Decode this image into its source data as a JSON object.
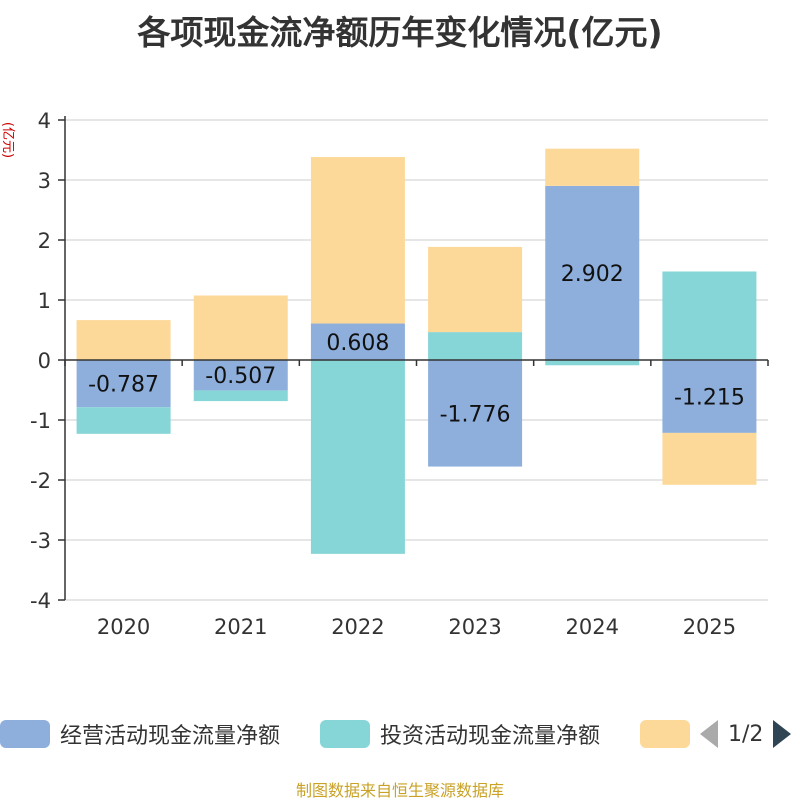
{
  "chart_data": {
    "type": "bar",
    "stacked": true,
    "title": "各项现金流净额历年变化情况(亿元)",
    "ylabel": "(亿元)",
    "xlabel": "",
    "ylim": [
      -4,
      4
    ],
    "yticks": [
      4,
      3,
      2,
      1,
      0,
      -1,
      -2,
      -3,
      -4
    ],
    "grid": true,
    "categories": [
      "2020",
      "2021",
      "2022",
      "2023",
      "2024",
      "2025"
    ],
    "series": [
      {
        "name": "经营活动现金流量净额",
        "color": "#8eafdc",
        "values": [
          -0.787,
          -0.507,
          0.608,
          -1.776,
          2.902,
          -1.215
        ],
        "labels": [
          "-0.787",
          "-0.507",
          "0.608",
          "-1.776",
          "2.902",
          "-1.215"
        ]
      },
      {
        "name": "投资活动现金流量净额",
        "color": "#86d5d7",
        "values": [
          -0.443,
          -0.178,
          -3.231,
          0.465,
          -0.088,
          1.475
        ]
      },
      {
        "name": "",
        "color": "#fdd999",
        "values": [
          0.665,
          1.075,
          2.775,
          1.42,
          0.62,
          -0.865
        ]
      }
    ],
    "legend_position": "bottom"
  },
  "legend": {
    "items": [
      "经营活动现金流量净额",
      "投资活动现金流量净额",
      ""
    ],
    "page_indicator": "1/2"
  },
  "source_note": "制图数据来自恒生聚源数据库"
}
